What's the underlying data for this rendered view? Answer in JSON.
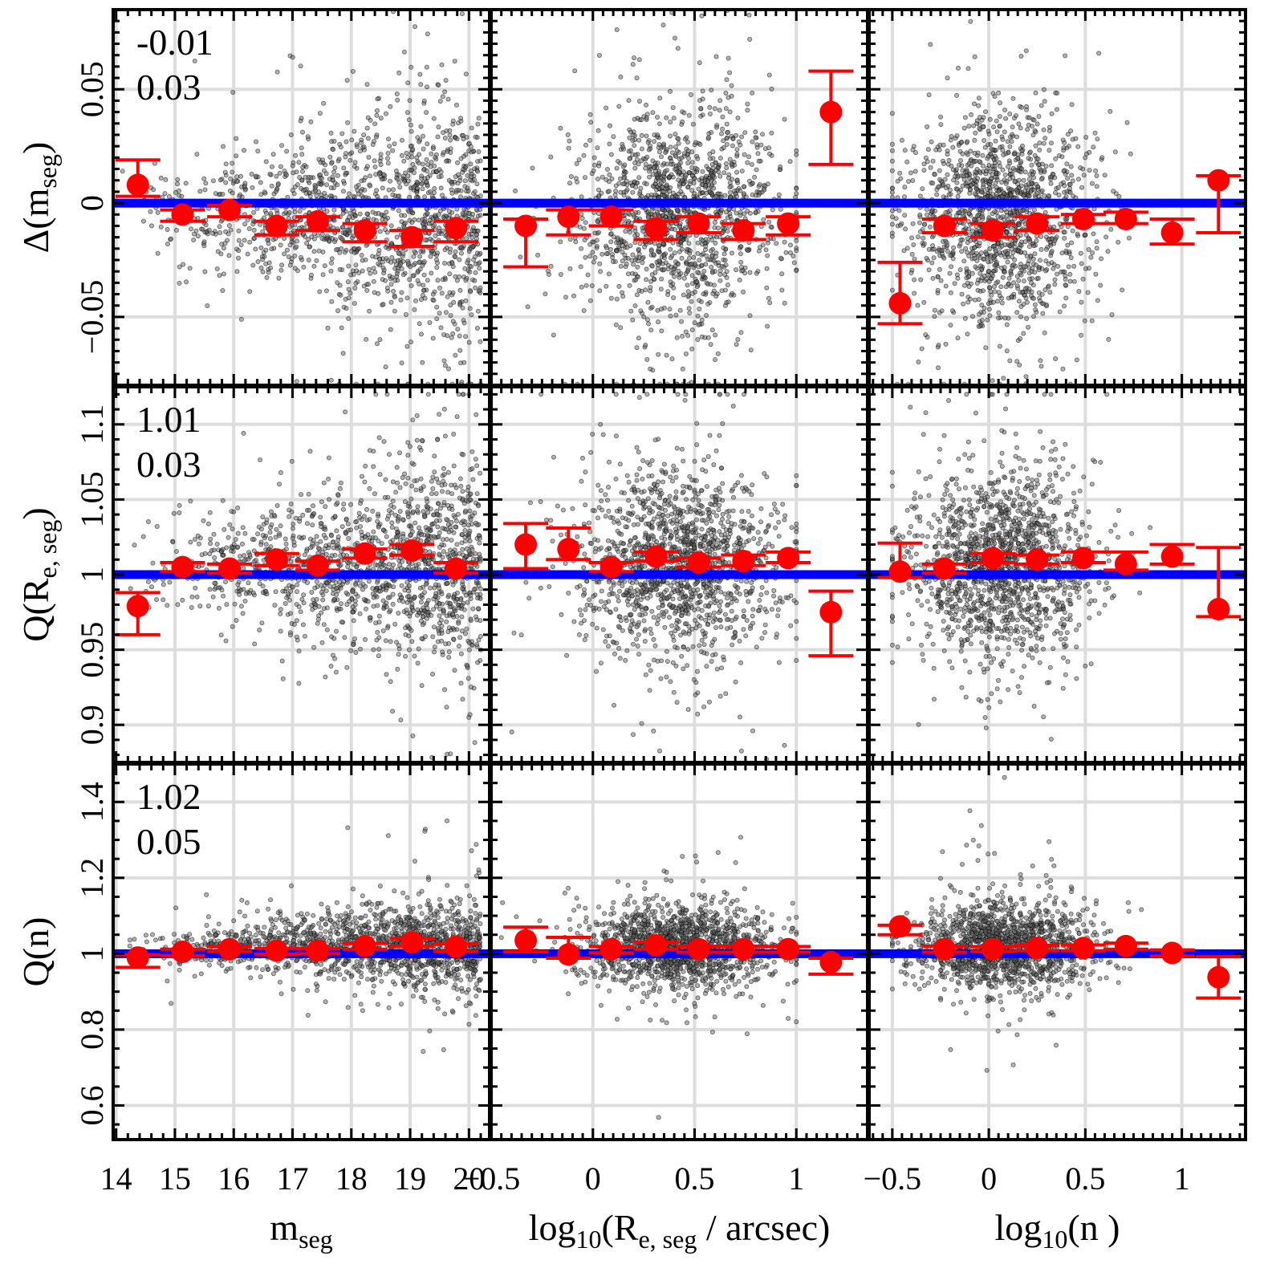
{
  "colors": {
    "points": "#000000",
    "binned": "#ff0000",
    "reference": "#0000ff",
    "grid": "#dddddd",
    "frame": "#000000"
  },
  "chart_data": {
    "type": "scatter",
    "layout": "3x3 grid of panels sharing x axes per column and y axes per row",
    "columns": [
      {
        "xlabel": "m",
        "xlabel_sub": "seg",
        "xlabel_tail": "",
        "xlim": [
          13.95,
          20.35
        ],
        "ticks": [
          14,
          15,
          16,
          17,
          18,
          19,
          20
        ],
        "tick_labels": [
          "14",
          "15",
          "16",
          "17",
          "18",
          "19",
          "20"
        ]
      },
      {
        "xlabel": "log",
        "xlabel_sub": "10",
        "xlabel_tail": "(R",
        "xlabel_sub2": "e, seg",
        "xlabel_tail2": " / arcsec)",
        "xlim": [
          -0.5,
          1.35
        ],
        "ticks": [
          -0.5,
          0,
          0.5,
          1
        ],
        "tick_labels": [
          "−0.5",
          "0",
          "0.5",
          "1"
        ]
      },
      {
        "xlabel": "log",
        "xlabel_sub": "10",
        "xlabel_tail": "(n",
        "xlabel_sub2": "",
        "xlabel_tail2": " )",
        "xlim": [
          -0.62,
          1.33
        ],
        "ticks": [
          -0.5,
          0,
          0.5,
          1
        ],
        "tick_labels": [
          "−0.5",
          "0",
          "0.5",
          "1"
        ]
      }
    ],
    "rows": [
      {
        "ylabel": "Δ(m",
        "ylabel_sub": "seg",
        "ylabel_tail": ")",
        "ylim": [
          -0.08,
          0.085
        ],
        "ticks": [
          -0.05,
          0,
          0.05
        ],
        "tick_labels": [
          "−0.05",
          "0",
          "0.05"
        ],
        "reference": 0,
        "stats": [
          "-0.01",
          "0.03"
        ],
        "clip_low": -0.0795
      },
      {
        "ylabel": "Q(R",
        "ylabel_sub": "e, seg",
        "ylabel_tail": ")",
        "ylim": [
          0.875,
          1.125
        ],
        "ticks": [
          0.9,
          0.95,
          1,
          1.05,
          1.1
        ],
        "tick_labels": [
          "0.9",
          "0.95",
          "1",
          "1.05",
          "1.1"
        ],
        "reference": 1,
        "stats": [
          "1.01",
          "0.03"
        ],
        "clip_high": 1.12
      },
      {
        "ylabel": "Q(n)",
        "ylabel_sub": "",
        "ylabel_tail": "",
        "ylim": [
          0.51,
          1.5
        ],
        "ticks": [
          0.6,
          0.8,
          1,
          1.2,
          1.4
        ],
        "tick_labels": [
          "0.6",
          "0.8",
          "1",
          "1.2",
          "1.4"
        ],
        "reference": 1,
        "stats": [
          "1.02",
          "0.05"
        ],
        "clip_high": 1.47
      }
    ],
    "scatter_distributions": {
      "description": "approx. 1500 grey semi-transparent galaxies per panel; generated from column-wise x distributions and row-wise y spreads",
      "n_points": 1500,
      "x": [
        {
          "kind": "mag",
          "min": 14.0,
          "max": 20.2
        },
        {
          "kind": "normal",
          "mean": 0.42,
          "sd": 0.25,
          "min": -0.45,
          "max": 1.0
        },
        {
          "kind": "normal",
          "mean": 0.06,
          "sd": 0.24,
          "min": -0.5,
          "max": 1.2
        }
      ],
      "y": [
        {
          "center": -0.005,
          "sd": 0.022
        },
        {
          "center": 1.008,
          "sd": 0.03
        },
        {
          "center": 1.02,
          "sd": 0.055
        }
      ]
    },
    "binned_medians": [
      [
        {
          "x": [
            14.37,
            15.13,
            15.93,
            16.73,
            17.43,
            18.23,
            19.03,
            19.78
          ],
          "y": [
            0.008,
            -0.005,
            -0.003,
            -0.01,
            -0.008,
            -0.012,
            -0.015,
            -0.011
          ],
          "ylo": [
            0.003,
            -0.008,
            -0.006,
            -0.014,
            -0.012,
            -0.017,
            -0.019,
            -0.017
          ],
          "yhi": [
            0.019,
            -0.003,
            -0.001,
            -0.008,
            -0.006,
            -0.009,
            -0.012,
            -0.008
          ]
        },
        {
          "x": [
            -0.33,
            -0.12,
            0.09,
            0.31,
            0.52,
            0.74,
            0.96,
            1.17
          ],
          "y": [
            -0.01,
            -0.006,
            -0.006,
            -0.011,
            -0.009,
            -0.012,
            -0.009,
            0.04
          ],
          "ylo": [
            -0.028,
            -0.014,
            -0.01,
            -0.016,
            -0.013,
            -0.016,
            -0.014,
            0.017
          ],
          "yhi": [
            -0.007,
            -0.003,
            -0.003,
            -0.008,
            -0.006,
            -0.009,
            -0.006,
            0.058
          ]
        },
        {
          "x": [
            -0.46,
            -0.23,
            0.02,
            0.25,
            0.49,
            0.71,
            0.95,
            1.19
          ],
          "y": [
            -0.044,
            -0.01,
            -0.012,
            -0.009,
            -0.007,
            -0.007,
            -0.013,
            0.01
          ],
          "ylo": [
            -0.053,
            -0.013,
            -0.015,
            -0.012,
            -0.009,
            -0.009,
            -0.018,
            -0.013
          ],
          "yhi": [
            -0.026,
            -0.007,
            -0.009,
            -0.006,
            -0.005,
            -0.004,
            -0.007,
            0.012
          ]
        }
      ],
      [
        {
          "x": [
            14.37,
            15.13,
            15.93,
            16.73,
            17.43,
            18.23,
            19.03,
            19.78
          ],
          "y": [
            0.979,
            1.005,
            1.004,
            1.01,
            1.006,
            1.014,
            1.016,
            1.004
          ],
          "ylo": [
            0.96,
            1.002,
            1.001,
            1.006,
            1.003,
            1.011,
            1.013,
            1.001
          ],
          "yhi": [
            0.988,
            1.008,
            1.007,
            1.014,
            1.009,
            1.017,
            1.02,
            1.008
          ]
        },
        {
          "x": [
            -0.33,
            -0.12,
            0.09,
            0.31,
            0.52,
            0.74,
            0.96,
            1.17
          ],
          "y": [
            1.02,
            1.017,
            1.005,
            1.012,
            1.008,
            1.009,
            1.011,
            0.975
          ],
          "ylo": [
            1.004,
            1.01,
            1.002,
            1.009,
            1.005,
            1.006,
            1.008,
            0.946
          ],
          "yhi": [
            1.034,
            1.031,
            1.008,
            1.015,
            1.011,
            1.013,
            1.015,
            0.989
          ]
        },
        {
          "x": [
            -0.46,
            -0.23,
            0.02,
            0.25,
            0.49,
            0.71,
            0.95,
            1.19
          ],
          "y": [
            1.002,
            1.004,
            1.011,
            1.01,
            1.011,
            1.007,
            1.012,
            0.977
          ],
          "ylo": [
            0.998,
            1.001,
            1.008,
            1.007,
            1.008,
            1.003,
            1.007,
            0.972
          ],
          "yhi": [
            1.021,
            1.007,
            1.014,
            1.013,
            1.015,
            1.015,
            1.02,
            1.018
          ]
        }
      ],
      [
        {
          "x": [
            14.37,
            15.13,
            15.93,
            16.73,
            17.43,
            18.23,
            19.03,
            19.78
          ],
          "y": [
            0.99,
            1.005,
            1.012,
            1.008,
            1.008,
            1.02,
            1.03,
            1.018
          ],
          "ylo": [
            0.964,
            0.995,
            1.006,
            0.999,
            1.0,
            1.012,
            1.02,
            1.006
          ],
          "yhi": [
            0.997,
            1.012,
            1.019,
            1.014,
            1.013,
            1.027,
            1.04,
            1.026
          ]
        },
        {
          "x": [
            -0.33,
            -0.12,
            0.09,
            0.31,
            0.52,
            0.74,
            0.96,
            1.17
          ],
          "y": [
            1.035,
            0.998,
            1.012,
            1.022,
            1.012,
            1.012,
            1.012,
            0.978
          ],
          "ylo": [
            1.005,
            0.988,
            1.002,
            1.012,
            1.004,
            1.004,
            1.004,
            0.946
          ],
          "yhi": [
            1.07,
            1.043,
            1.019,
            1.03,
            1.02,
            1.02,
            1.019,
            0.988
          ]
        },
        {
          "x": [
            -0.46,
            -0.23,
            0.02,
            0.25,
            0.49,
            0.71,
            0.95,
            1.19
          ],
          "y": [
            1.072,
            1.012,
            1.012,
            1.015,
            1.015,
            1.02,
            1.002,
            0.938
          ],
          "ylo": [
            1.05,
            1.004,
            1.006,
            1.008,
            1.008,
            1.012,
            0.994,
            0.883
          ],
          "yhi": [
            1.075,
            1.02,
            1.019,
            1.022,
            1.023,
            1.028,
            1.01,
            0.992
          ]
        }
      ]
    ]
  }
}
